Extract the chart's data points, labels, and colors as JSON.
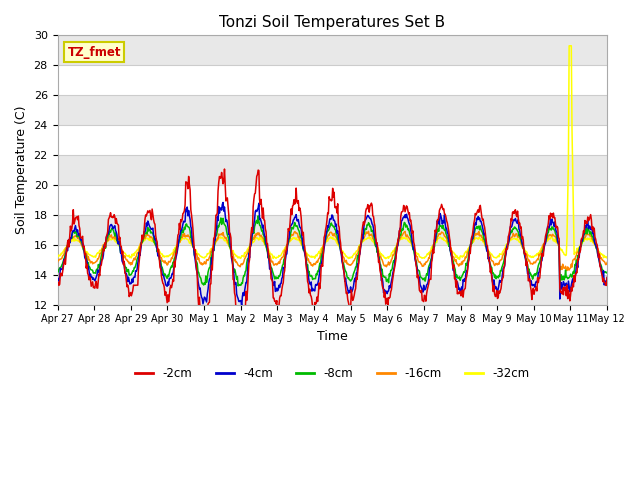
{
  "title": "Tonzi Soil Temperatures Set B",
  "xlabel": "Time",
  "ylabel": "Soil Temperature (C)",
  "ylim": [
    12,
    30
  ],
  "background_color": "#ffffff",
  "plot_bg_color": "#ffffff",
  "grid_color": "#cccccc",
  "band_colors": [
    "#e8e8e8",
    "#ffffff"
  ],
  "annotation_text": "TZ_fmet",
  "annotation_color": "#cc0000",
  "annotation_bg": "#ffffcc",
  "annotation_border": "#cccc00",
  "series_colors": {
    "-2cm": "#dd0000",
    "-4cm": "#0000cc",
    "-8cm": "#00bb00",
    "-16cm": "#ff8800",
    "-32cm": "#ffff00"
  },
  "legend_labels": [
    "-2cm",
    "-4cm",
    "-8cm",
    "-16cm",
    "-32cm"
  ],
  "xtick_labels": [
    "Apr 27",
    "Apr 28",
    "Apr 29",
    "Apr 30",
    "May 1",
    "May 2",
    "May 3",
    "May 4",
    "May 5",
    "May 6",
    "May 7",
    "May 8",
    "May 9",
    "May 10",
    "May 11",
    "May 12"
  ],
  "ytick_values": [
    12,
    14,
    16,
    18,
    20,
    22,
    24,
    26,
    28,
    30
  ]
}
